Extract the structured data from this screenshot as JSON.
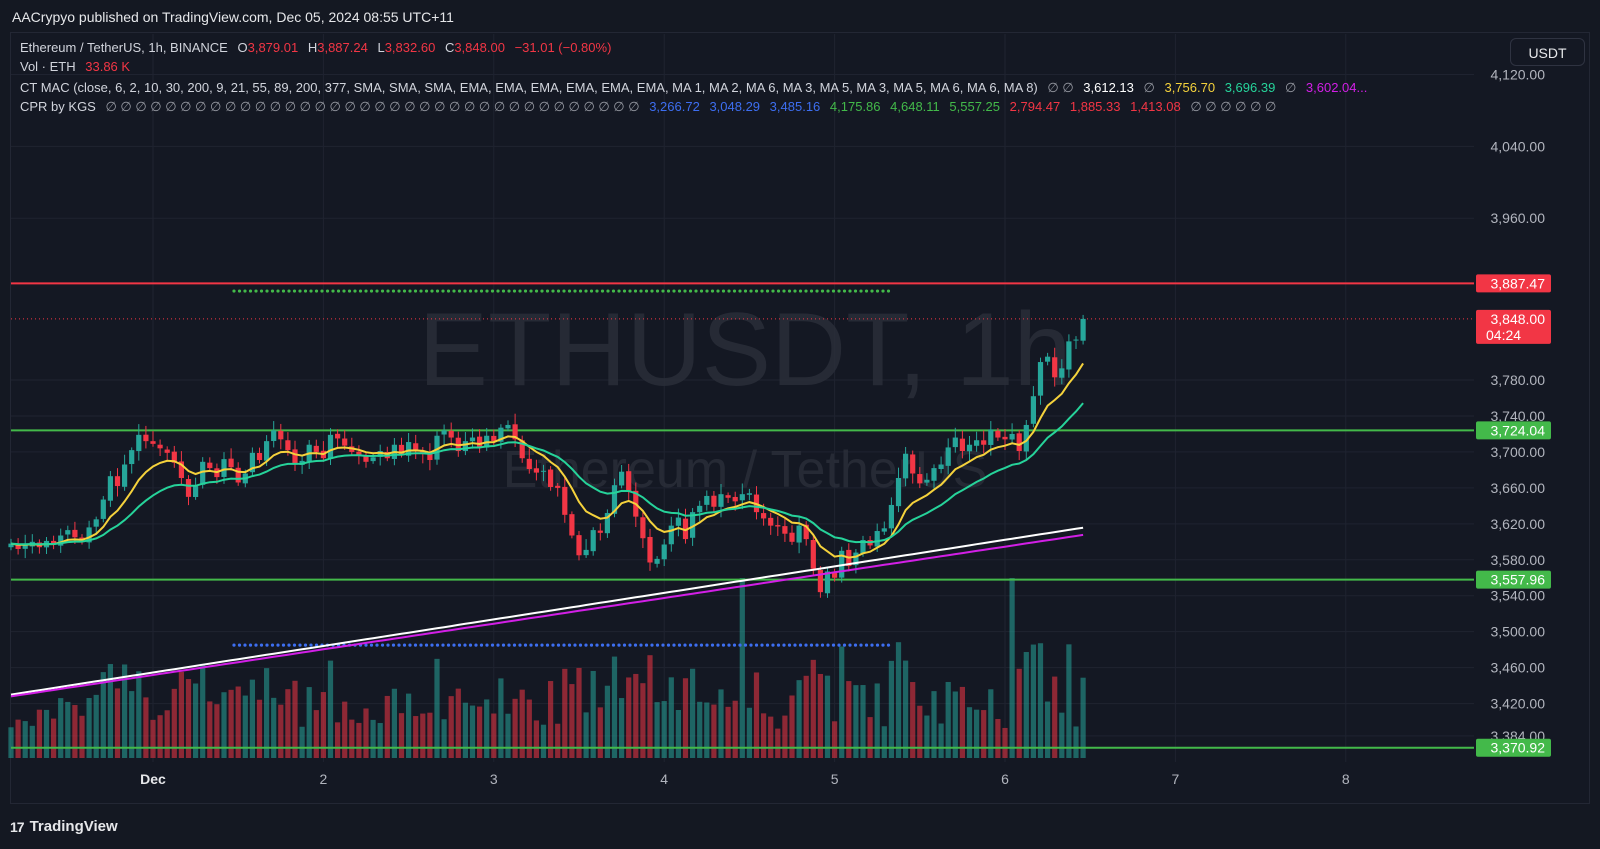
{
  "header": {
    "publish_text": "AACrypyo published on TradingView.com, Dec 05, 2024 08:55 UTC+11"
  },
  "legend": {
    "symbol": "Ethereum / TetherUS, 1h, BINANCE",
    "o_label": "O",
    "o_value": "3,879.01",
    "h_label": "H",
    "h_value": "3,887.24",
    "l_label": "L",
    "l_value": "3,832.60",
    "c_label": "C",
    "c_value": "3,848.00",
    "change": "−31.01 (−0.80%)",
    "vol_label": "Vol · ETH",
    "vol_value": "33.86 K",
    "ctmac_label": "CT MAC (close, 6, 2, 10, 30, 200, 9, 21, 55, 89, 200, 377, SMA, SMA, SMA, EMA, EMA, EMA, EMA, EMA, EMA, MA 1, MA 2, MA 6, MA 3, MA 5, MA 3, MA 5, MA 6, MA 6, MA 8)",
    "ctmac_null_a": "∅ ∅",
    "ctmac_v1": "3,612.13",
    "ctmac_null_b": "∅",
    "ctmac_v2": "3,756.70",
    "ctmac_v3": "3,696.39",
    "ctmac_null_c": "∅",
    "ctmac_v4": "3,602.04...",
    "cpr_label": "CPR by KGS",
    "cpr_nulls": "∅ ∅ ∅ ∅ ∅ ∅ ∅ ∅ ∅ ∅ ∅ ∅ ∅ ∅ ∅ ∅ ∅ ∅ ∅ ∅ ∅ ∅ ∅ ∅ ∅ ∅ ∅ ∅ ∅ ∅ ∅ ∅ ∅ ∅ ∅ ∅",
    "cpr_v1": "3,266.72",
    "cpr_v2": "3,048.29",
    "cpr_v3": "3,485.16",
    "cpr_v4": "4,175.86",
    "cpr_v5": "4,648.11",
    "cpr_v6": "5,557.25",
    "cpr_v7": "2,794.47",
    "cpr_v8": "1,885.33",
    "cpr_v9": "1,413.08",
    "cpr_nulls_end": "∅ ∅ ∅ ∅ ∅ ∅"
  },
  "currency_button": "USDT",
  "watermark": {
    "symbol": "ETHUSDT, 1h",
    "name": "Ethereum / TetherUS"
  },
  "footer": {
    "brand": "TradingView",
    "logo_glyph": "17"
  },
  "colors": {
    "up": "#26a69a",
    "down": "#f23645",
    "ma_fast": "#f5d23c",
    "ma_mid": "#26d39a",
    "ma_slow_white": "#ffffff",
    "ma_slow_magenta": "#d21fe6",
    "resistance": "#f23645",
    "support": "#43b94a",
    "cpr_dots": "#3d6ef0"
  },
  "chart_data": {
    "type": "candlestick",
    "symbol": "ETHUSDT",
    "interval": "1h",
    "ylim": [
      3355,
      4165
    ],
    "y_ticks": [
      "4,120.00",
      "4,040.00",
      "3,960.00",
      "3,780.00",
      "3,740.00",
      "3,700.00",
      "3,660.00",
      "3,620.00",
      "3,580.00",
      "3,540.00",
      "3,500.00",
      "3,460.00",
      "3,420.00",
      "3,384.00"
    ],
    "x_ticks": [
      "Dec",
      "2",
      "3",
      "4",
      "5",
      "6",
      "7",
      "8"
    ],
    "x_tick_index": [
      0,
      24,
      48,
      72,
      96,
      120,
      144,
      168
    ],
    "start_index_offset": -20,
    "closes": [
      3598,
      3592,
      3596,
      3600,
      3594,
      3601,
      3597,
      3607,
      3613,
      3605,
      3600,
      3616,
      3625,
      3647,
      3673,
      3662,
      3686,
      3702,
      3719,
      3712,
      3709,
      3704,
      3699,
      3688,
      3671,
      3650,
      3662,
      3689,
      3682,
      3672,
      3692,
      3683,
      3666,
      3676,
      3699,
      3691,
      3712,
      3724,
      3714,
      3702,
      3686,
      3690,
      3708,
      3700,
      3693,
      3719,
      3715,
      3707,
      3700,
      3696,
      3689,
      3694,
      3701,
      3693,
      3708,
      3697,
      3711,
      3702,
      3699,
      3691,
      3718,
      3724,
      3716,
      3701,
      3712,
      3716,
      3705,
      3718,
      3712,
      3727,
      3730,
      3714,
      3693,
      3681,
      3677,
      3679,
      3661,
      3660,
      3630,
      3607,
      3585,
      3591,
      3613,
      3610,
      3632,
      3663,
      3678,
      3656,
      3628,
      3604,
      3577,
      3581,
      3597,
      3618,
      3627,
      3603,
      3633,
      3640,
      3651,
      3639,
      3653,
      3649,
      3645,
      3653,
      3654,
      3633,
      3626,
      3618,
      3617,
      3609,
      3600,
      3618,
      3603,
      3570,
      3544,
      3567,
      3560,
      3590,
      3573,
      3588,
      3602,
      3596,
      3612,
      3615,
      3641,
      3671,
      3698,
      3676,
      3665,
      3669,
      3682,
      3686,
      3705,
      3716,
      3701,
      3708,
      3713,
      3708,
      3725,
      3716,
      3714,
      3720,
      3701,
      3730,
      3762,
      3800,
      3806,
      3783,
      3793,
      3823,
      3825,
      3848
    ],
    "overlays": {
      "support_levels": [
        3724.04,
        3557.96,
        3370.92
      ],
      "resistance_levels": [
        3887.47
      ],
      "last_price": 3848.0,
      "countdown": "04:24",
      "cpr_dots_levels": [
        3879,
        3485
      ]
    },
    "price_tags": [
      "3,887.47",
      "3,848.00",
      "3,724.04",
      "3,557.96",
      "3,370.92"
    ]
  }
}
